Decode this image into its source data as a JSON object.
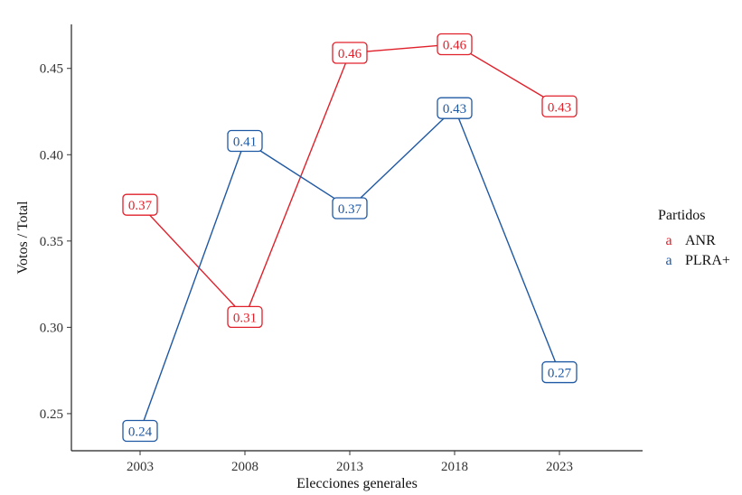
{
  "chart_data": {
    "type": "line",
    "title": "",
    "xlabel": "Elecciones generales",
    "ylabel": "Votos / Total",
    "categories": [
      "2003",
      "2008",
      "2013",
      "2018",
      "2023"
    ],
    "y_ticks": [
      "0.25",
      "0.30",
      "0.35",
      "0.40",
      "0.45"
    ],
    "ylim": [
      0.2285,
      0.4755
    ],
    "grid": false,
    "legend": {
      "title": "Partidos",
      "key_glyph": "a",
      "placement": "right"
    },
    "series": [
      {
        "name": "ANR",
        "color": "#e0212b",
        "values": [
          0.371,
          0.306,
          0.459,
          0.464,
          0.428
        ],
        "labels": [
          "0.37",
          "0.31",
          "0.46",
          "0.46",
          "0.43"
        ]
      },
      {
        "name": "PLRA+",
        "color": "#1f58a3",
        "values": [
          0.24,
          0.408,
          0.369,
          0.427,
          0.274
        ],
        "labels": [
          "0.24",
          "0.41",
          "0.37",
          "0.43",
          "0.27"
        ]
      }
    ]
  }
}
